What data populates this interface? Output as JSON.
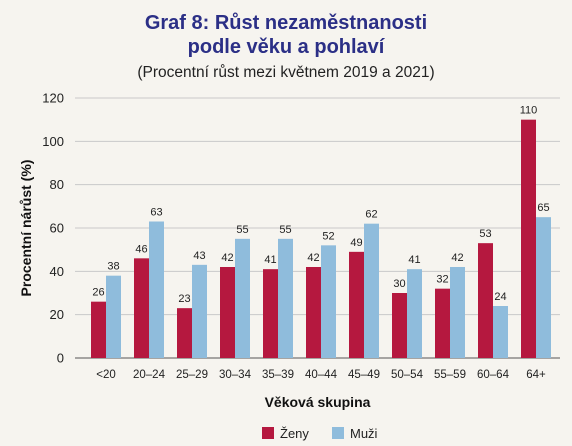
{
  "chart_data": {
    "type": "bar",
    "title_line1": "Graf 8: Růst nezaměstnanosti",
    "title_line2": "podle věku a pohlaví",
    "subtitle": "(Procentní růst mezi květnem 2019 a 2021)",
    "xlabel": "Věková skupina",
    "ylabel": "Procentní nárůst (%)",
    "ylim": [
      0,
      120
    ],
    "yticks": [
      0,
      20,
      40,
      60,
      80,
      100,
      120
    ],
    "categories": [
      "<20",
      "20–24",
      "25–29",
      "30–34",
      "35–39",
      "40–44",
      "45–49",
      "50–54",
      "55–59",
      "60–64",
      "64+"
    ],
    "series": [
      {
        "name": "Ženy",
        "color": "#b5183f",
        "values": [
          26,
          46,
          23,
          42,
          41,
          42,
          49,
          30,
          32,
          53,
          110
        ]
      },
      {
        "name": "Muži",
        "color": "#8fbcdc",
        "values": [
          38,
          63,
          43,
          55,
          55,
          52,
          62,
          41,
          42,
          24,
          65
        ]
      }
    ],
    "grid": true,
    "legend_position": "bottom-center"
  }
}
